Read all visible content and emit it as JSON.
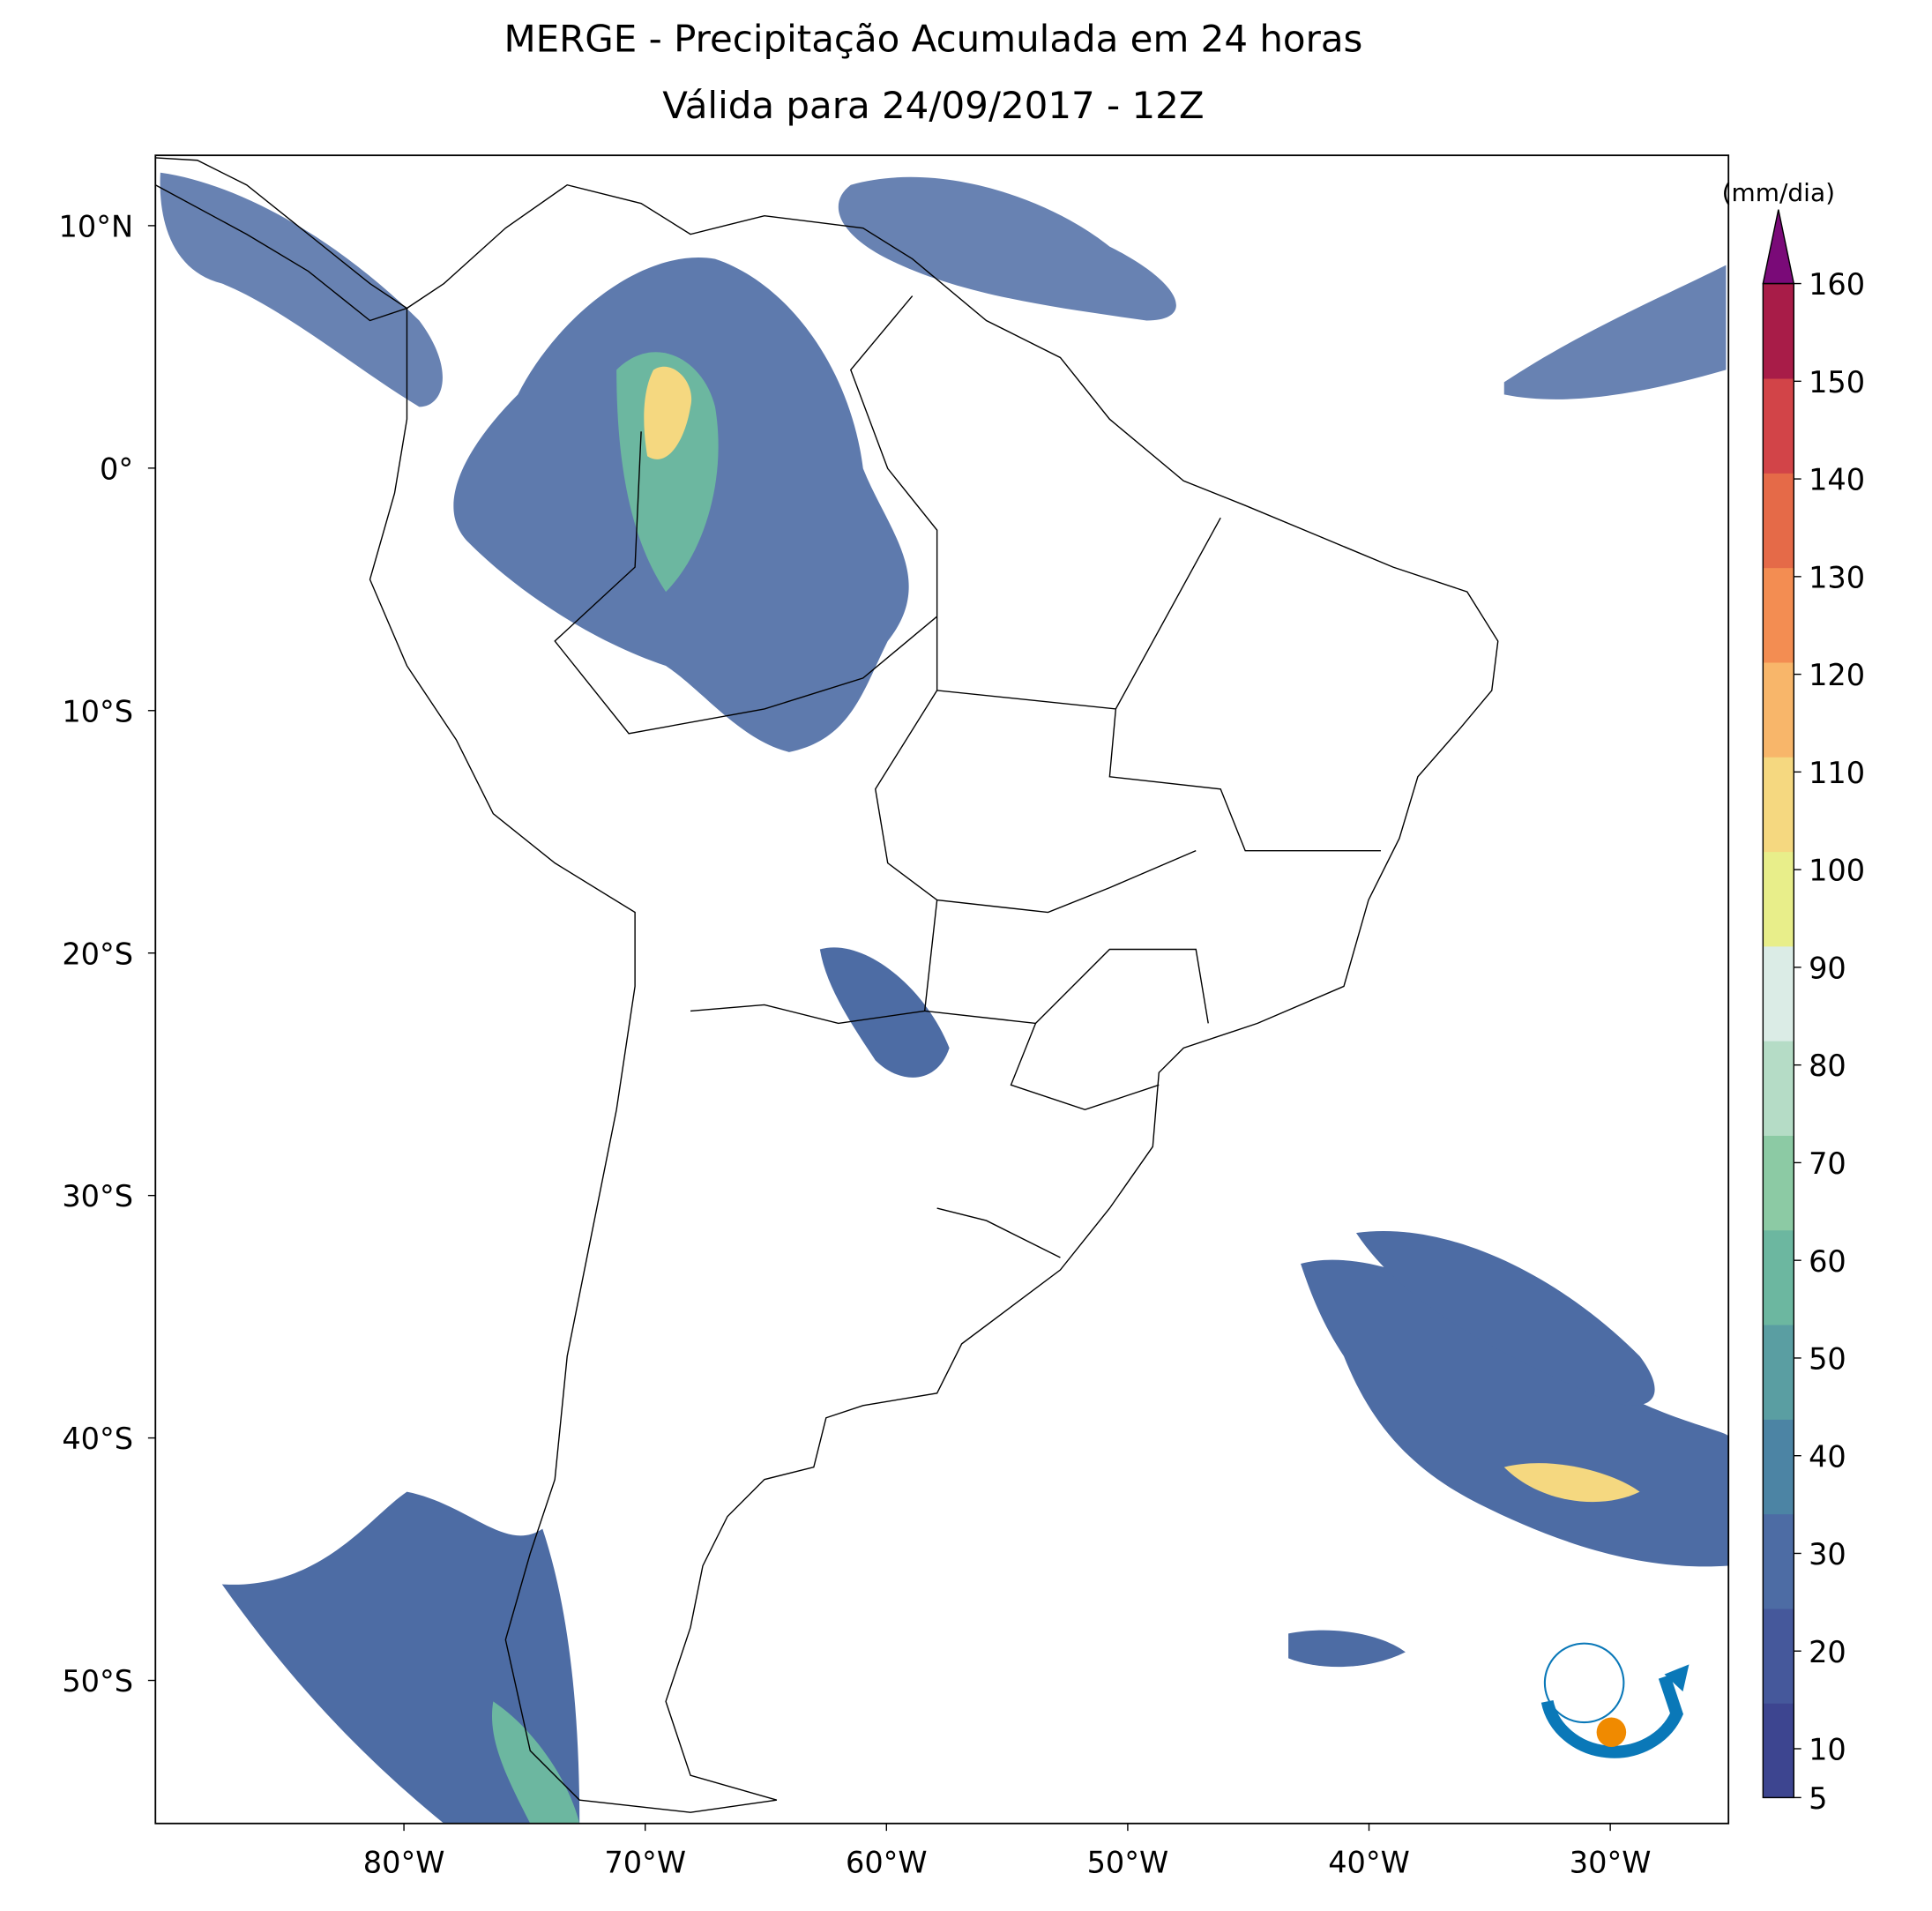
{
  "map": {
    "title": [
      "MERGE - Precipitação Acumulada em 24 horas",
      "Válida para 24/09/2017 - 12Z"
    ],
    "xlim": [
      -90.3,
      -25.1
    ],
    "ylim": [
      -55.9,
      12.9
    ],
    "xticks": [
      {
        "value": -80,
        "label": "80°W"
      },
      {
        "value": -70,
        "label": "70°W"
      },
      {
        "value": -60,
        "label": "60°W"
      },
      {
        "value": -50,
        "label": "50°W"
      },
      {
        "value": -40,
        "label": "40°W"
      },
      {
        "value": -30,
        "label": "30°W"
      }
    ],
    "yticks": [
      {
        "value": 10,
        "label": "10°N"
      },
      {
        "value": 0,
        "label": "0°"
      },
      {
        "value": -10,
        "label": "10°S"
      },
      {
        "value": -20,
        "label": "20°S"
      },
      {
        "value": -30,
        "label": "30°S"
      },
      {
        "value": -40,
        "label": "40°S"
      },
      {
        "value": -50,
        "label": "50°S"
      }
    ],
    "colorbar": {
      "label": "(mm/dia)",
      "lim": [
        5,
        160
      ],
      "ticks": [
        5,
        10,
        20,
        30,
        40,
        50,
        60,
        70,
        80,
        90,
        100,
        110,
        120,
        130,
        140,
        150,
        160
      ],
      "colors": [
        "#3d4590",
        "#45589b",
        "#4d6ca4",
        "#4c84a4",
        "#5a9ea2",
        "#6cb7a0",
        "#8ccaa4",
        "#b5dcc6",
        "#dbece6",
        "#e8ee8a",
        "#f5d880",
        "#f8b66a",
        "#f38d52",
        "#e56a48",
        "#d24448",
        "#a81c48"
      ],
      "extend_color": "#7a0a78"
    },
    "logo": "INPE"
  }
}
